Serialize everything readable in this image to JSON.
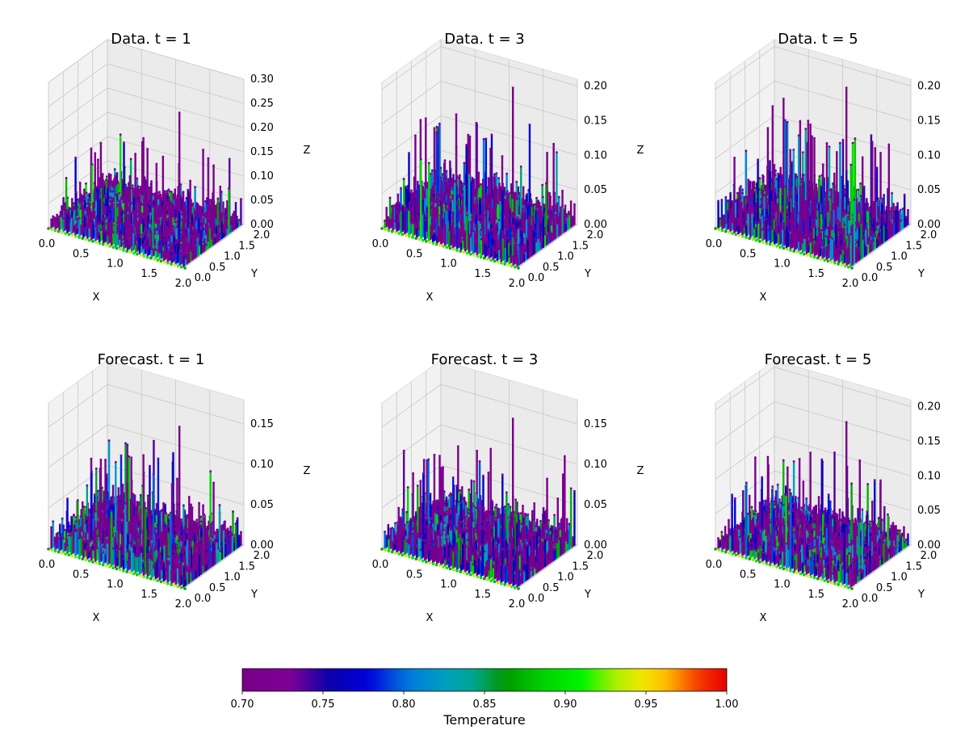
{
  "figure": {
    "colorbar": {
      "label": "Temperature",
      "min": 0.7,
      "max": 1.0,
      "ticks": [
        "0.70",
        "0.75",
        "0.80",
        "0.85",
        "0.90",
        "0.95",
        "1.00"
      ],
      "colormap": "nipy_spectral"
    }
  },
  "chart_data": [
    {
      "type": "scatter3d",
      "title": "Data. t = 1",
      "xlabel": "X",
      "ylabel": "Y",
      "zlabel": "Z",
      "xticks": [
        "0.0",
        "0.5",
        "1.0",
        "1.5",
        "2.0"
      ],
      "yticks": [
        "0.0",
        "0.5",
        "1.0",
        "1.5",
        "2.0"
      ],
      "zticks": [
        "0.00",
        "0.05",
        "0.10",
        "0.15",
        "0.20",
        "0.25",
        "0.30"
      ],
      "xlim": [
        0,
        2
      ],
      "ylim": [
        0,
        2
      ],
      "zlim": [
        0,
        0.3
      ],
      "grid": true,
      "peak_z": 0.22,
      "typical_z": 0.05,
      "color_range": [
        0.7,
        1.0
      ]
    },
    {
      "type": "scatter3d",
      "title": "Data. t = 3",
      "xlabel": "X",
      "ylabel": "Y",
      "zlabel": "Z",
      "xticks": [
        "0.0",
        "0.5",
        "1.0",
        "1.5",
        "2.0"
      ],
      "yticks": [
        "0.0",
        "0.5",
        "1.0",
        "1.5",
        "2.0"
      ],
      "zticks": [
        "0.00",
        "0.05",
        "0.10",
        "0.15",
        "0.20"
      ],
      "xlim": [
        0,
        2
      ],
      "ylim": [
        0,
        2
      ],
      "zlim": [
        0,
        0.21
      ],
      "grid": true,
      "peak_z": 0.19,
      "typical_z": 0.05,
      "color_range": [
        0.7,
        1.0
      ]
    },
    {
      "type": "scatter3d",
      "title": "Data. t = 5",
      "xlabel": "X",
      "ylabel": "Y",
      "zlabel": "Z",
      "xticks": [
        "0.0",
        "0.5",
        "1.0",
        "1.5",
        "2.0"
      ],
      "yticks": [
        "0.0",
        "0.5",
        "1.0",
        "1.5",
        "2.0"
      ],
      "zticks": [
        "0.00",
        "0.05",
        "0.10",
        "0.15",
        "0.20"
      ],
      "xlim": [
        0,
        2
      ],
      "ylim": [
        0,
        2
      ],
      "zlim": [
        0,
        0.21
      ],
      "grid": true,
      "peak_z": 0.19,
      "typical_z": 0.05,
      "color_range": [
        0.7,
        1.0
      ]
    },
    {
      "type": "scatter3d",
      "title": "Forecast. t = 1",
      "xlabel": "X",
      "ylabel": "Y",
      "zlabel": "Z",
      "xticks": [
        "0.0",
        "0.5",
        "1.0",
        "1.5",
        "2.0"
      ],
      "yticks": [
        "0.0",
        "0.5",
        "1.0",
        "1.5",
        "2.0"
      ],
      "zticks": [
        "0.00",
        "0.05",
        "0.10",
        "0.15"
      ],
      "xlim": [
        0,
        2
      ],
      "ylim": [
        0,
        2
      ],
      "zlim": [
        0,
        0.18
      ],
      "grid": true,
      "peak_z": 0.14,
      "typical_z": 0.04,
      "color_range": [
        0.7,
        1.0
      ]
    },
    {
      "type": "scatter3d",
      "title": "Forecast. t = 3",
      "xlabel": "X",
      "ylabel": "Y",
      "zlabel": "Z",
      "xticks": [
        "0.0",
        "0.5",
        "1.0",
        "1.5",
        "2.0"
      ],
      "yticks": [
        "0.0",
        "0.5",
        "1.0",
        "1.5",
        "2.0"
      ],
      "zticks": [
        "0.00",
        "0.05",
        "0.10",
        "0.15"
      ],
      "xlim": [
        0,
        2
      ],
      "ylim": [
        0,
        2
      ],
      "zlim": [
        0,
        0.18
      ],
      "grid": true,
      "peak_z": 0.15,
      "typical_z": 0.04,
      "color_range": [
        0.7,
        1.0
      ]
    },
    {
      "type": "scatter3d",
      "title": "Forecast. t = 5",
      "xlabel": "X",
      "ylabel": "Y",
      "zlabel": "Z",
      "xticks": [
        "0.0",
        "0.5",
        "1.0",
        "1.5",
        "2.0"
      ],
      "yticks": [
        "0.0",
        "0.5",
        "1.0",
        "1.5",
        "2.0"
      ],
      "zticks": [
        "0.00",
        "0.05",
        "0.10",
        "0.15",
        "0.20"
      ],
      "xlim": [
        0,
        2
      ],
      "ylim": [
        0,
        2
      ],
      "zlim": [
        0,
        0.21
      ],
      "grid": true,
      "peak_z": 0.17,
      "typical_z": 0.04,
      "color_range": [
        0.7,
        1.0
      ]
    }
  ]
}
